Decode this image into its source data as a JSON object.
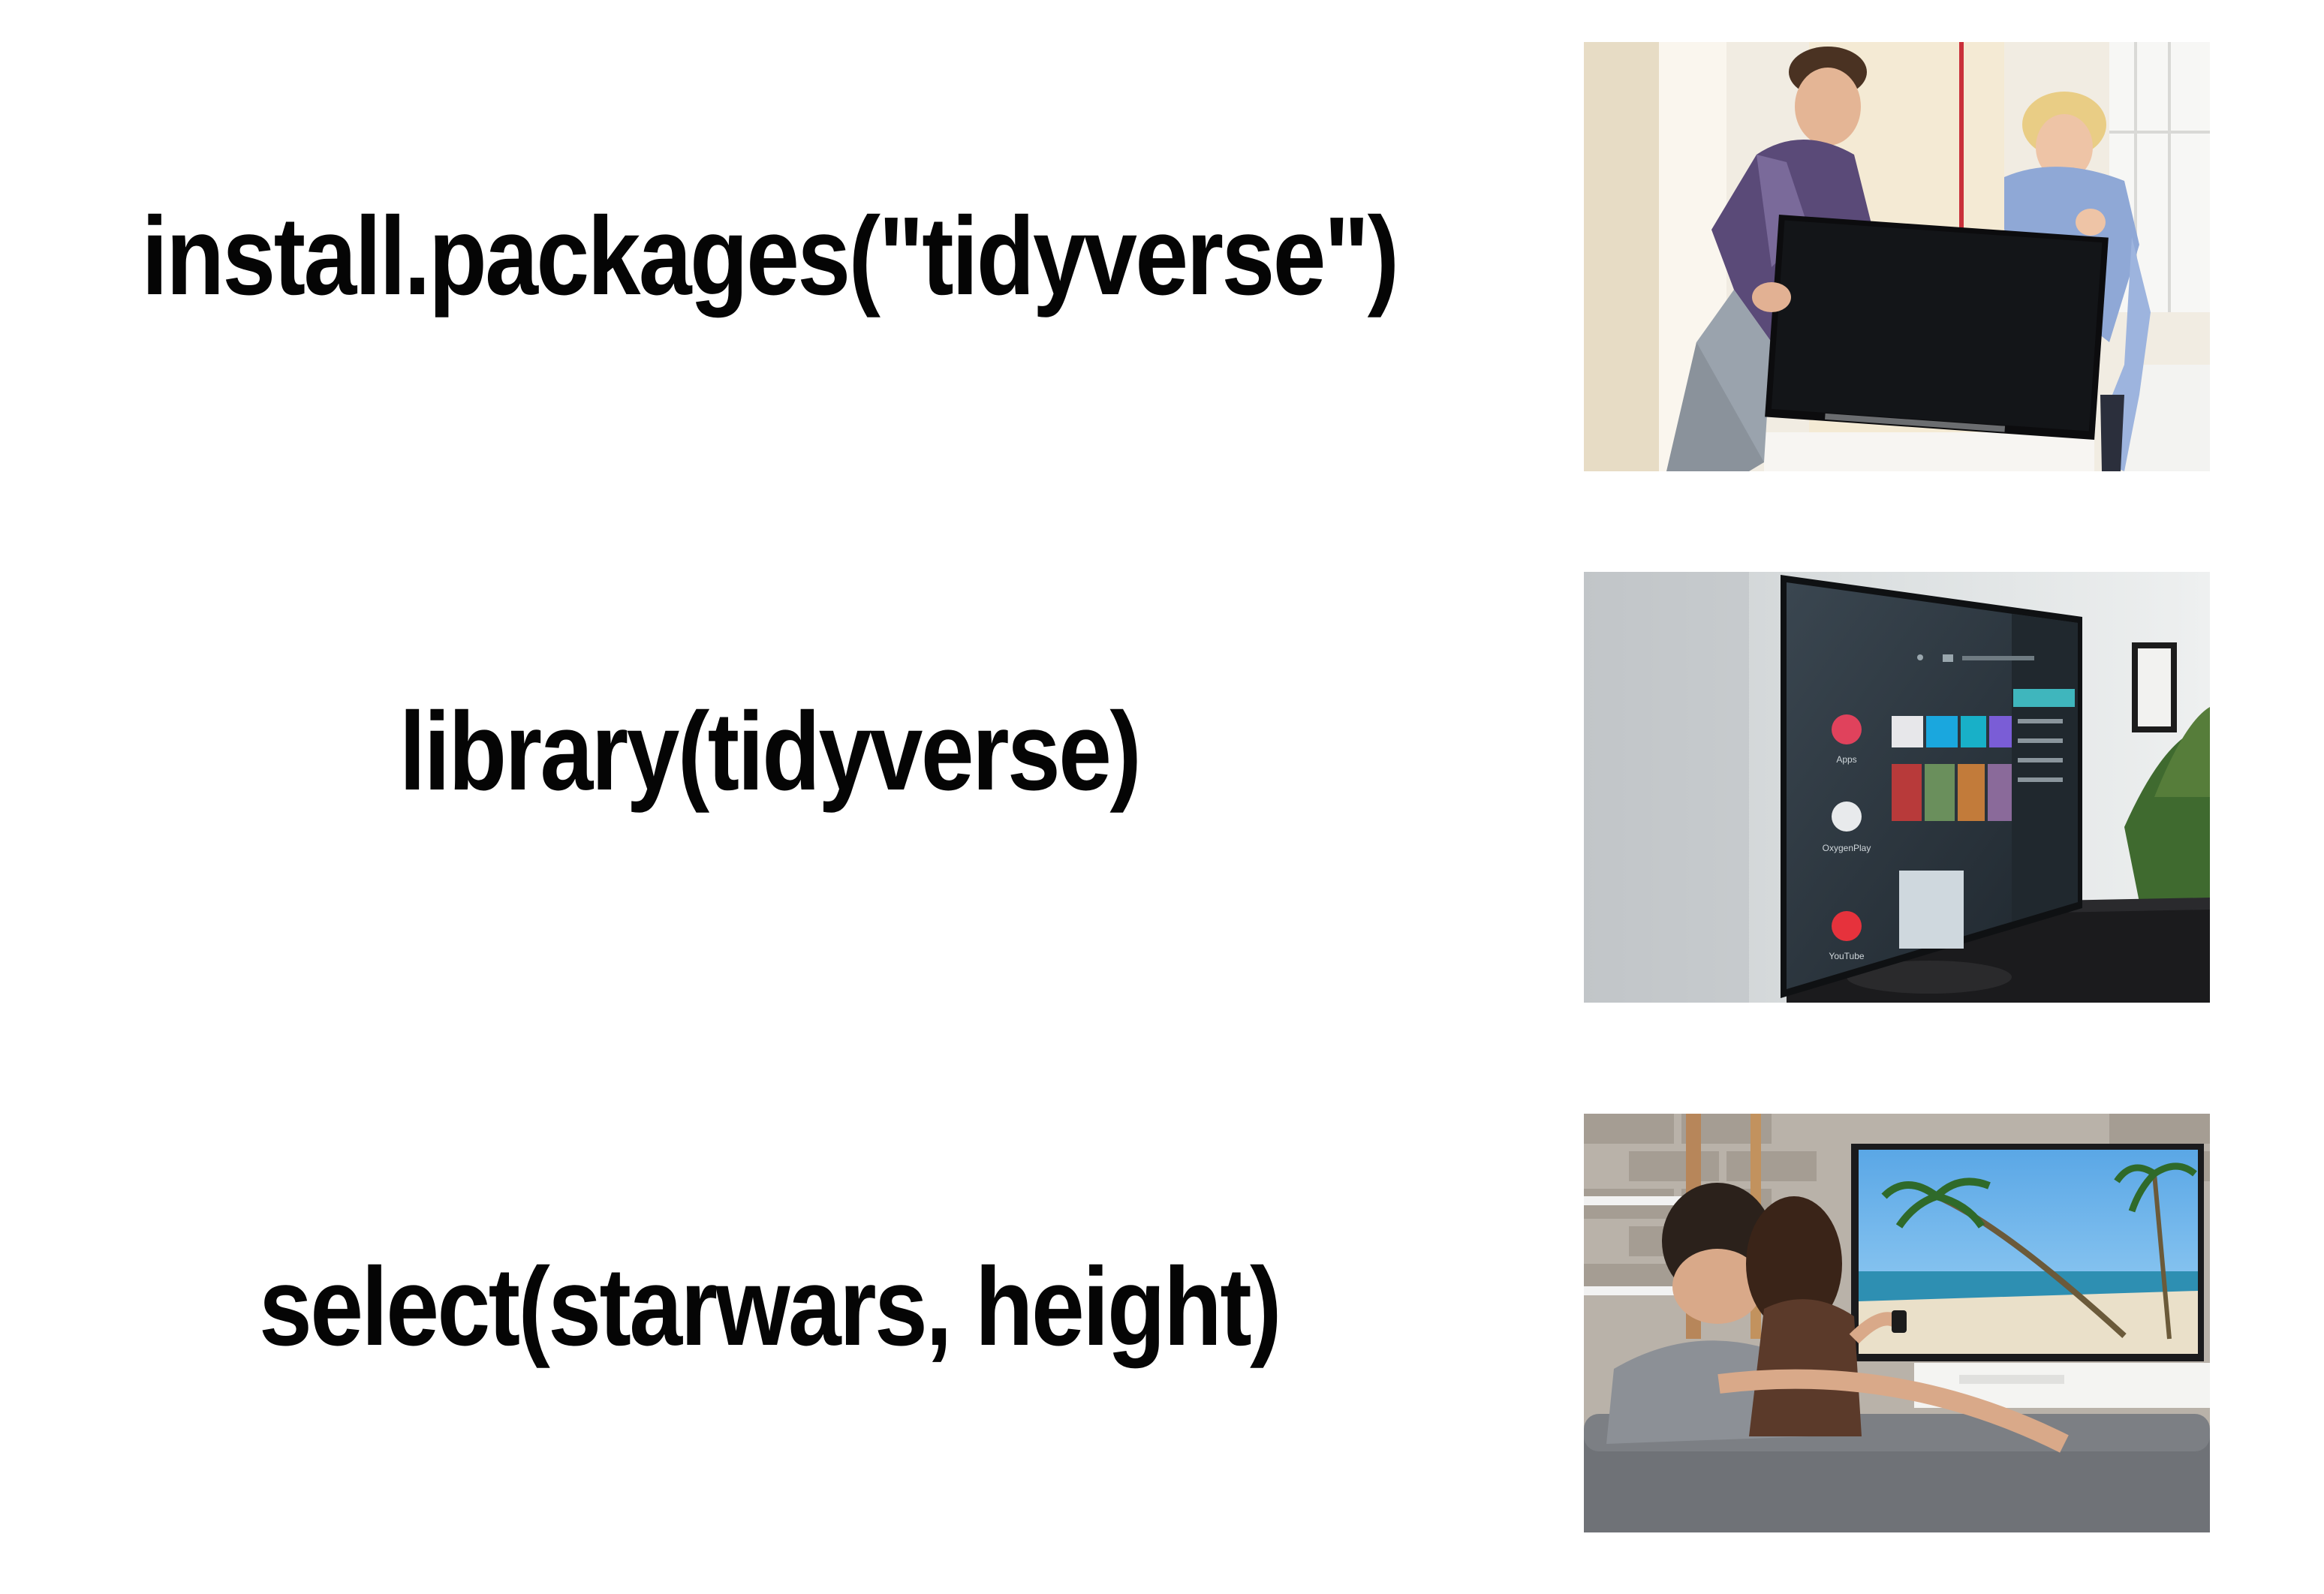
{
  "rows": [
    {
      "code": "install.packages(\"tidyverse\")",
      "image_icon": "buying-tv-photo"
    },
    {
      "code": "library(tidyverse)",
      "image_icon": "mounted-tv-photo"
    },
    {
      "code": "select(starwars, height)",
      "image_icon": "watching-tv-photo"
    }
  ],
  "tv_screen": {
    "apps": [
      "Apps",
      "OxygenPlay",
      "YouTube"
    ]
  },
  "colors": {
    "text": "#050505",
    "background": "#ffffff"
  }
}
